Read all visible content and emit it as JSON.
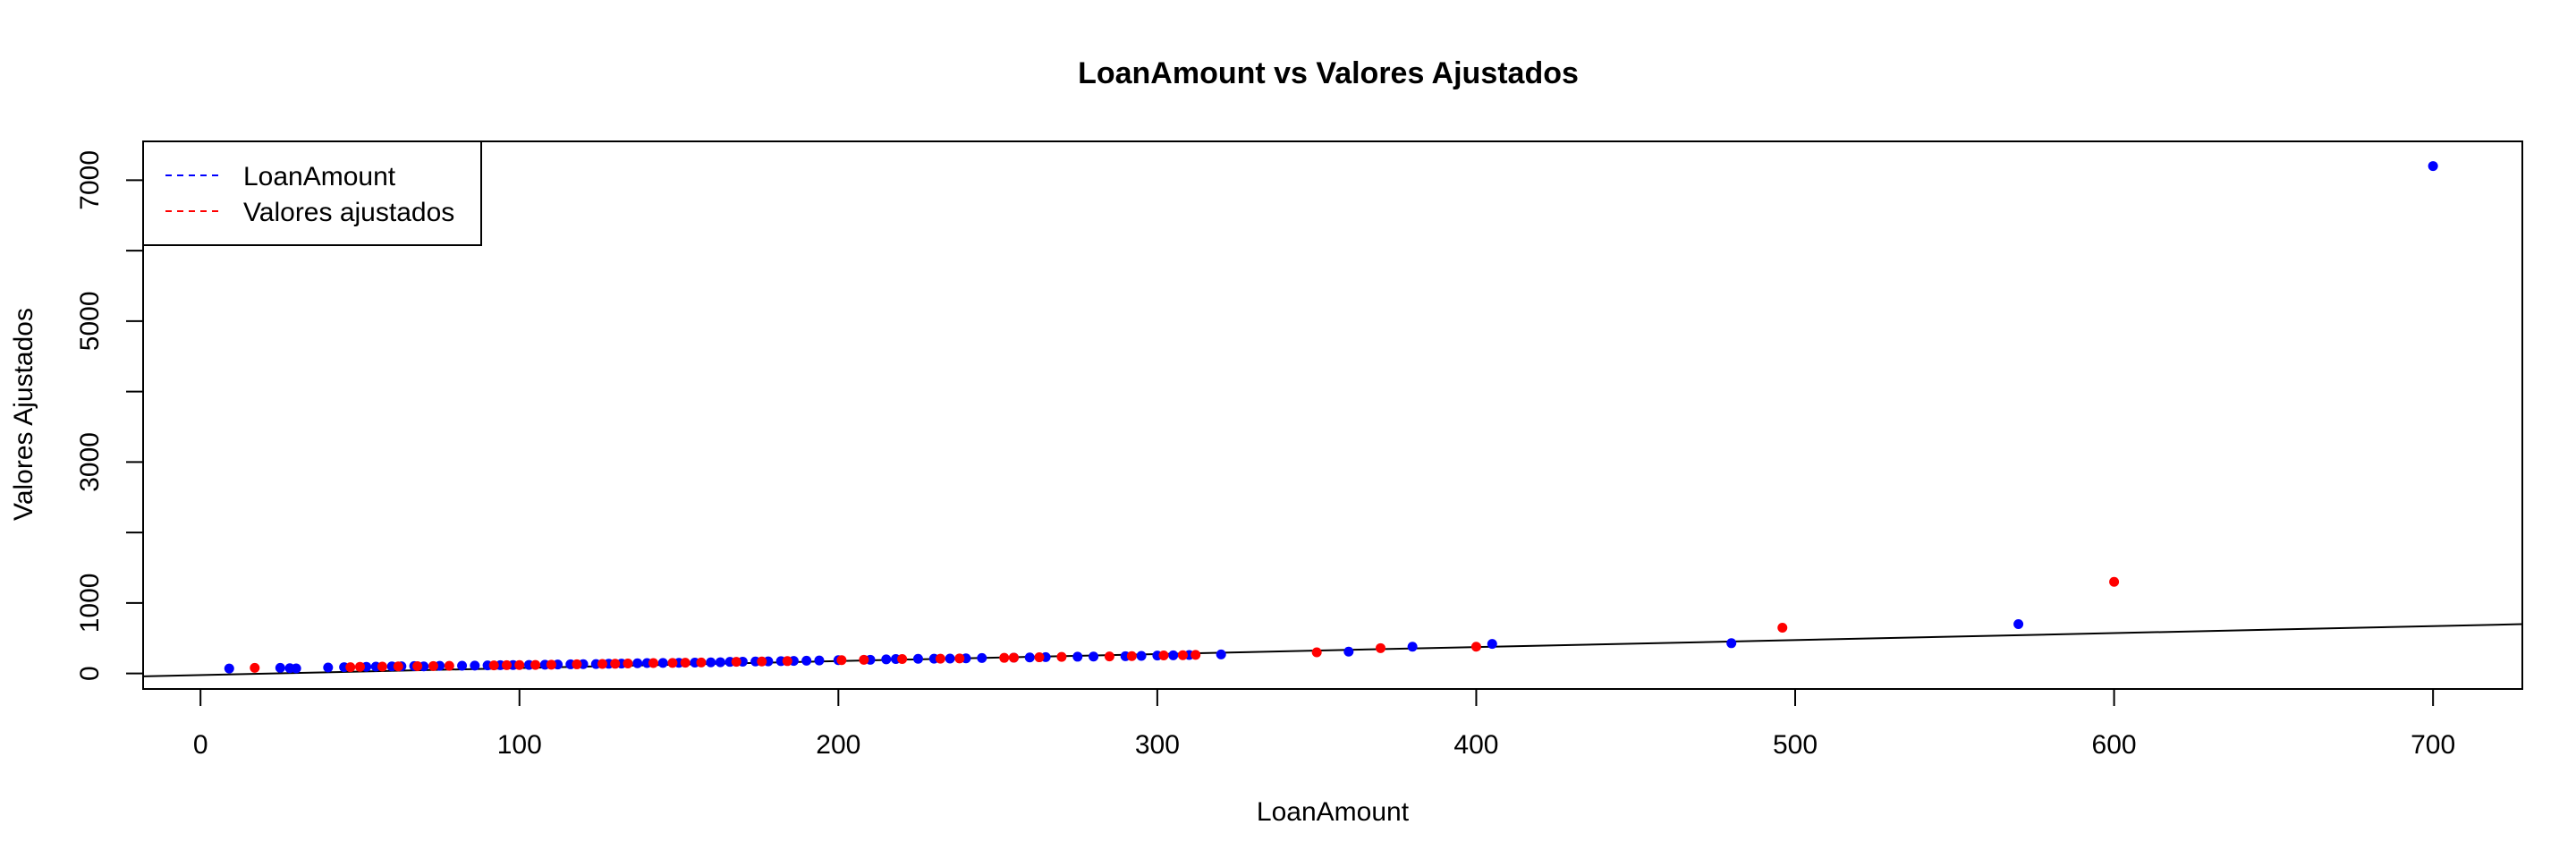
{
  "chart_data": {
    "type": "scatter",
    "title": "LoanAmount vs Valores Ajustados",
    "xlabel": "LoanAmount",
    "ylabel": "Valores Ajustados",
    "xlim": [
      -18,
      728
    ],
    "ylim": [
      -220,
      7550
    ],
    "x_ticks": [
      0,
      100,
      200,
      300,
      400,
      500,
      600,
      700
    ],
    "y_ticks": [
      0,
      1000,
      2000,
      3000,
      4000,
      5000,
      6000,
      7000
    ],
    "y_tick_labels": [
      "0",
      "1000",
      "",
      "3000",
      "",
      "5000",
      "",
      "7000"
    ],
    "grid": false,
    "legend": {
      "position": "top-left",
      "entries": [
        {
          "label": "LoanAmount",
          "color": "#0000FF",
          "line": "dashed"
        },
        {
          "label": "Valores ajustados",
          "color": "#FF0000",
          "line": "dashed"
        }
      ]
    },
    "fit_line": {
      "x": [
        -18,
        728
      ],
      "y": [
        -40,
        700
      ],
      "color": "#000000"
    },
    "series": [
      {
        "name": "LoanAmount",
        "color": "#0000FF",
        "points": [
          [
            9,
            70
          ],
          [
            25,
            80
          ],
          [
            28,
            75
          ],
          [
            30,
            72
          ],
          [
            40,
            85
          ],
          [
            45,
            90
          ],
          [
            52,
            95
          ],
          [
            55,
            98
          ],
          [
            60,
            100
          ],
          [
            63,
            102
          ],
          [
            67,
            105
          ],
          [
            70,
            100
          ],
          [
            75,
            108
          ],
          [
            82,
            110
          ],
          [
            86,
            112
          ],
          [
            90,
            115
          ],
          [
            94,
            118
          ],
          [
            98,
            120
          ],
          [
            103,
            122
          ],
          [
            108,
            125
          ],
          [
            112,
            128
          ],
          [
            116,
            130
          ],
          [
            120,
            132
          ],
          [
            124,
            134
          ],
          [
            128,
            138
          ],
          [
            132,
            140
          ],
          [
            137,
            145
          ],
          [
            140,
            148
          ],
          [
            145,
            150
          ],
          [
            150,
            152
          ],
          [
            155,
            155
          ],
          [
            160,
            158
          ],
          [
            163,
            160
          ],
          [
            166,
            165
          ],
          [
            170,
            168
          ],
          [
            174,
            170
          ],
          [
            178,
            172
          ],
          [
            182,
            175
          ],
          [
            186,
            178
          ],
          [
            190,
            182
          ],
          [
            194,
            185
          ],
          [
            200,
            190
          ],
          [
            210,
            195
          ],
          [
            215,
            200
          ],
          [
            218,
            205
          ],
          [
            225,
            208
          ],
          [
            230,
            210
          ],
          [
            235,
            212
          ],
          [
            240,
            215
          ],
          [
            245,
            220
          ],
          [
            255,
            225
          ],
          [
            260,
            228
          ],
          [
            265,
            232
          ],
          [
            275,
            238
          ],
          [
            280,
            240
          ],
          [
            290,
            245
          ],
          [
            295,
            250
          ],
          [
            300,
            255
          ],
          [
            305,
            258
          ],
          [
            310,
            262
          ],
          [
            320,
            270
          ],
          [
            360,
            310
          ],
          [
            380,
            380
          ],
          [
            405,
            420
          ],
          [
            480,
            430
          ],
          [
            570,
            700
          ],
          [
            700,
            7200
          ]
        ]
      },
      {
        "name": "Valores ajustados",
        "color": "#FF0000",
        "points": [
          [
            17,
            80
          ],
          [
            47,
            90
          ],
          [
            50,
            95
          ],
          [
            57,
            98
          ],
          [
            62,
            100
          ],
          [
            68,
            104
          ],
          [
            73,
            106
          ],
          [
            78,
            108
          ],
          [
            92,
            115
          ],
          [
            96,
            118
          ],
          [
            100,
            120
          ],
          [
            105,
            122
          ],
          [
            110,
            125
          ],
          [
            118,
            130
          ],
          [
            126,
            136
          ],
          [
            130,
            138
          ],
          [
            134,
            142
          ],
          [
            142,
            148
          ],
          [
            148,
            150
          ],
          [
            152,
            153
          ],
          [
            157,
            156
          ],
          [
            168,
            166
          ],
          [
            176,
            170
          ],
          [
            184,
            176
          ],
          [
            201,
            190
          ],
          [
            208,
            195
          ],
          [
            220,
            205
          ],
          [
            232,
            210
          ],
          [
            238,
            214
          ],
          [
            252,
            222
          ],
          [
            255,
            225
          ],
          [
            263,
            230
          ],
          [
            270,
            236
          ],
          [
            285,
            242
          ],
          [
            292,
            246
          ],
          [
            302,
            256
          ],
          [
            308,
            260
          ],
          [
            312,
            264
          ],
          [
            350,
            300
          ],
          [
            370,
            360
          ],
          [
            400,
            380
          ],
          [
            496,
            650
          ],
          [
            600,
            1300
          ]
        ]
      }
    ]
  }
}
